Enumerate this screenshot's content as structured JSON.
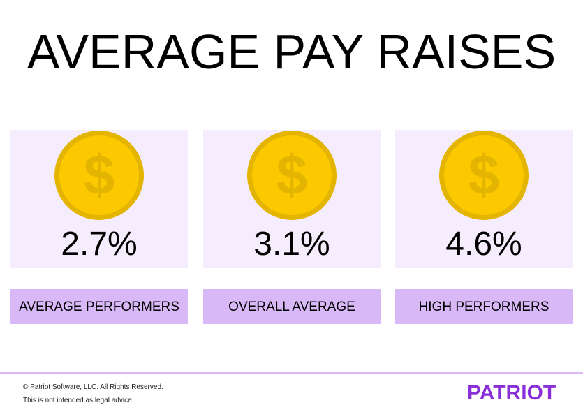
{
  "title": "AVERAGE PAY RAISES",
  "cards": [
    {
      "icon": "dollar-coin-icon",
      "value": "2.7%",
      "label": "AVERAGE PERFORMERS"
    },
    {
      "icon": "dollar-coin-icon",
      "value": "3.1%",
      "label": "OVERALL AVERAGE"
    },
    {
      "icon": "dollar-coin-icon",
      "value": "4.6%",
      "label": "HIGH PERFORMERS"
    }
  ],
  "coin_symbol": "$",
  "footer": {
    "copyright": "© Patriot Software, LLC. All Rights Reserved.",
    "disclaimer": "This is not intended as legal advice.",
    "logo": "PATRIOT"
  },
  "colors": {
    "card_bg": "#f5ecfd",
    "label_bg": "#d9b8f7",
    "coin": "#fcc800",
    "coin_rim": "#e3b500",
    "brand": "#8a30d8"
  }
}
